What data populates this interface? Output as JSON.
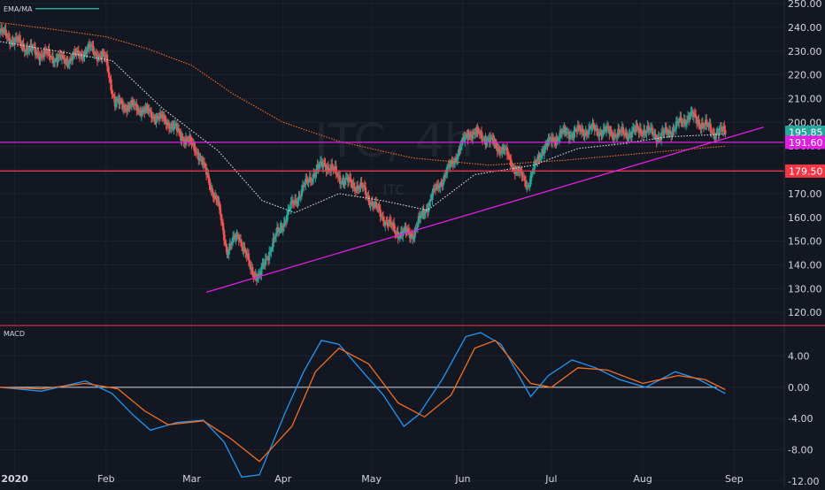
{
  "watermark": {
    "big": "ITC, 4h",
    "small": "ITC"
  },
  "indicators": {
    "main_label": "EMA/MA",
    "macd_label": "MACD"
  },
  "colors": {
    "background": "#131722",
    "grid": "#1e222d",
    "up": "#26a69a",
    "down": "#ef5350",
    "ema": "#e0e0e0",
    "ma": "#f26f21",
    "trendline": "#e020e0",
    "support_high": "#e020e0",
    "support_low": "#f23645",
    "macd": "#2196f3",
    "signal": "#f26f21",
    "price_tag": "#26a69a"
  },
  "chart_data": [
    {
      "type": "candlestick",
      "title": "ITC, 4h",
      "y_axis": {
        "ticks": [
          "250.00",
          "240.00",
          "230.00",
          "220.00",
          "210.00",
          "200.00",
          "190.00",
          "180.00",
          "170.00",
          "160.00",
          "150.00",
          "140.00",
          "130.00",
          "120.00"
        ],
        "tick_values": [
          250,
          240,
          230,
          220,
          210,
          200,
          190,
          180,
          170,
          160,
          150,
          140,
          130,
          120
        ],
        "ylim": [
          114.5,
          251.5
        ]
      },
      "x_axis": {
        "ticks": [
          "2020",
          "Feb",
          "Mar",
          "Apr",
          "May",
          "Jun",
          "Jul",
          "Aug",
          "Sep"
        ],
        "tick_dates": [
          "2020-01-01",
          "2020-02-01",
          "2020-03-01",
          "2020-04-01",
          "2020-05-01",
          "2020-06-01",
          "2020-07-01",
          "2020-08-01",
          "2020-09-01"
        ],
        "xlim": [
          "2019-12-27",
          "2020-09-18"
        ]
      },
      "price_path": [
        [
          "2019-12-27",
          238
        ],
        [
          "2020-01-07",
          230
        ],
        [
          "2020-01-18",
          226
        ],
        [
          "2020-01-27",
          231
        ],
        [
          "2020-02-01",
          226
        ],
        [
          "2020-02-04",
          208
        ],
        [
          "2020-02-12",
          206
        ],
        [
          "2020-02-22",
          200
        ],
        [
          "2020-03-03",
          188
        ],
        [
          "2020-03-10",
          165
        ],
        [
          "2020-03-13",
          146
        ],
        [
          "2020-03-17",
          153
        ],
        [
          "2020-03-21",
          138
        ],
        [
          "2020-03-24",
          135
        ],
        [
          "2020-03-28",
          148
        ],
        [
          "2020-04-04",
          165
        ],
        [
          "2020-04-11",
          178
        ],
        [
          "2020-04-15",
          183
        ],
        [
          "2020-04-21",
          176
        ],
        [
          "2020-04-28",
          172
        ],
        [
          "2020-05-03",
          163
        ],
        [
          "2020-05-09",
          154
        ],
        [
          "2020-05-15",
          153
        ],
        [
          "2020-05-22",
          170
        ],
        [
          "2020-05-28",
          182
        ],
        [
          "2020-06-03",
          196
        ],
        [
          "2020-06-08",
          194
        ],
        [
          "2020-06-15",
          188
        ],
        [
          "2020-06-19",
          180
        ],
        [
          "2020-06-23",
          174
        ],
        [
          "2020-06-28",
          189
        ],
        [
          "2020-07-04",
          195
        ],
        [
          "2020-07-15",
          197
        ],
        [
          "2020-07-25",
          195
        ],
        [
          "2020-08-01",
          197
        ],
        [
          "2020-08-07",
          194
        ],
        [
          "2020-08-12",
          198
        ],
        [
          "2020-08-17",
          203
        ],
        [
          "2020-08-25",
          196
        ],
        [
          "2020-08-29",
          195.85
        ]
      ],
      "ema_path": [
        [
          "2019-12-27",
          234
        ],
        [
          "2020-01-20",
          229
        ],
        [
          "2020-02-03",
          226
        ],
        [
          "2020-02-20",
          206
        ],
        [
          "2020-03-10",
          188
        ],
        [
          "2020-03-25",
          167
        ],
        [
          "2020-04-05",
          162
        ],
        [
          "2020-04-20",
          170
        ],
        [
          "2020-05-05",
          167
        ],
        [
          "2020-05-20",
          163
        ],
        [
          "2020-06-05",
          178
        ],
        [
          "2020-06-25",
          182
        ],
        [
          "2020-07-10",
          189
        ],
        [
          "2020-07-25",
          191
        ],
        [
          "2020-08-10",
          194
        ],
        [
          "2020-08-29",
          195
        ]
      ],
      "ma_path": [
        [
          "2019-12-27",
          242
        ],
        [
          "2020-01-15",
          239
        ],
        [
          "2020-02-01",
          236
        ],
        [
          "2020-02-15",
          231
        ],
        [
          "2020-03-01",
          224
        ],
        [
          "2020-03-15",
          212
        ],
        [
          "2020-04-01",
          200
        ],
        [
          "2020-04-20",
          192
        ],
        [
          "2020-05-15",
          185
        ],
        [
          "2020-06-10",
          182
        ],
        [
          "2020-07-05",
          184
        ],
        [
          "2020-08-01",
          187
        ],
        [
          "2020-08-29",
          190
        ]
      ],
      "trendline": {
        "start": [
          "2020-03-06",
          128.5
        ],
        "end": [
          "2020-09-11",
          198.0
        ]
      },
      "horizontal_levels": [
        {
          "label": "191.60",
          "value": 191.6,
          "color": "#e020e0"
        },
        {
          "label": "179.50",
          "value": 179.5,
          "color": "#f23645"
        }
      ],
      "last_price": {
        "label": "195.85",
        "value": 195.85
      }
    },
    {
      "type": "line",
      "title": "MACD",
      "y_axis": {
        "ticks": [
          "4.00",
          "0.00",
          "-4.00",
          "-8.00",
          "-12.00"
        ],
        "tick_values": [
          4,
          0,
          -4,
          -8,
          -12
        ],
        "ylim": [
          -12.7,
          7.8
        ]
      },
      "zero_line": 0,
      "series": [
        {
          "role": "macd",
          "points": [
            [
              "2019-12-27",
              0
            ],
            [
              "2020-01-10",
              -0.5
            ],
            [
              "2020-01-25",
              0.8
            ],
            [
              "2020-02-03",
              -0.8
            ],
            [
              "2020-02-10",
              -3.5
            ],
            [
              "2020-02-16",
              -5.5
            ],
            [
              "2020-02-25",
              -4.5
            ],
            [
              "2020-03-05",
              -4.2
            ],
            [
              "2020-03-12",
              -7
            ],
            [
              "2020-03-18",
              -11.5
            ],
            [
              "2020-03-24",
              -11.2
            ],
            [
              "2020-04-02",
              -3
            ],
            [
              "2020-04-08",
              2
            ],
            [
              "2020-04-14",
              6
            ],
            [
              "2020-04-20",
              5.5
            ],
            [
              "2020-04-28",
              2
            ],
            [
              "2020-05-05",
              -1
            ],
            [
              "2020-05-12",
              -5
            ],
            [
              "2020-05-17",
              -3.5
            ],
            [
              "2020-05-25",
              1
            ],
            [
              "2020-06-02",
              6.5
            ],
            [
              "2020-06-07",
              7
            ],
            [
              "2020-06-14",
              5.5
            ],
            [
              "2020-06-24",
              -1.2
            ],
            [
              "2020-06-30",
              1.5
            ],
            [
              "2020-07-08",
              3.5
            ],
            [
              "2020-07-16",
              2.5
            ],
            [
              "2020-07-24",
              1
            ],
            [
              "2020-08-02",
              0
            ],
            [
              "2020-08-12",
              2
            ],
            [
              "2020-08-20",
              1
            ],
            [
              "2020-08-29",
              -0.8
            ]
          ]
        },
        {
          "role": "signal",
          "points": [
            [
              "2019-12-27",
              0
            ],
            [
              "2020-01-10",
              -0.2
            ],
            [
              "2020-01-25",
              0.5
            ],
            [
              "2020-02-05",
              -0.2
            ],
            [
              "2020-02-14",
              -3
            ],
            [
              "2020-02-22",
              -4.8
            ],
            [
              "2020-03-05",
              -4.3
            ],
            [
              "2020-03-14",
              -6.5
            ],
            [
              "2020-03-24",
              -9.5
            ],
            [
              "2020-04-04",
              -5
            ],
            [
              "2020-04-12",
              2
            ],
            [
              "2020-04-20",
              5
            ],
            [
              "2020-04-30",
              3
            ],
            [
              "2020-05-10",
              -2
            ],
            [
              "2020-05-19",
              -3.8
            ],
            [
              "2020-05-28",
              -1
            ],
            [
              "2020-06-05",
              5
            ],
            [
              "2020-06-12",
              6
            ],
            [
              "2020-06-24",
              0.5
            ],
            [
              "2020-07-01",
              0
            ],
            [
              "2020-07-10",
              2.5
            ],
            [
              "2020-07-20",
              2.2
            ],
            [
              "2020-08-01",
              0.5
            ],
            [
              "2020-08-13",
              1.5
            ],
            [
              "2020-08-22",
              1
            ],
            [
              "2020-08-29",
              -0.3
            ]
          ]
        }
      ]
    }
  ]
}
